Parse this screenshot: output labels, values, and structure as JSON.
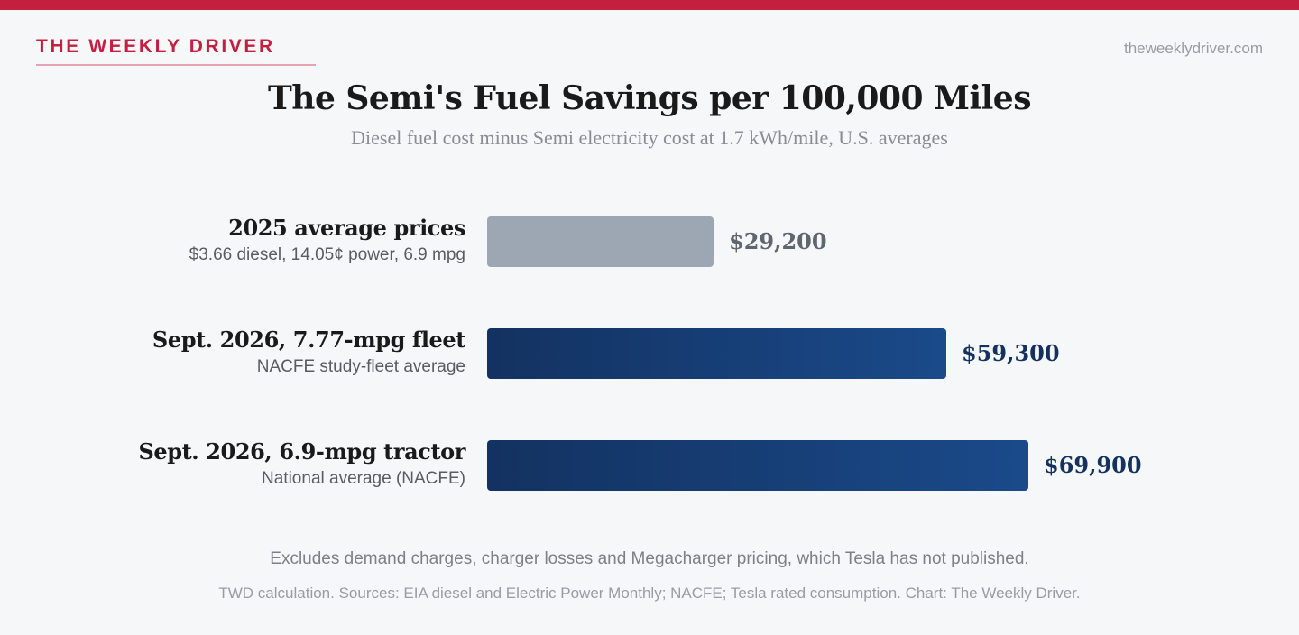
{
  "header": {
    "brand": "THE WEEKLY DRIVER",
    "site": "theweeklydriver.com"
  },
  "chart_data": {
    "type": "bar",
    "orientation": "horizontal",
    "title": "The Semi's Fuel Savings per 100,000 Miles",
    "subtitle": "Diesel fuel cost minus Semi electricity cost at 1.7 kWh/mile, U.S. averages",
    "categories": [
      "2025 average prices",
      "Sept. 2026, 7.77-mpg fleet",
      "Sept. 2026, 6.9-mpg tractor"
    ],
    "sublabels": [
      "$3.66 diesel, 14.05¢ power, 6.9 mpg",
      "NACFE study-fleet average",
      "National average (NACFE)"
    ],
    "values": [
      29200,
      59300,
      69900
    ],
    "value_labels": [
      "$29,200",
      "$59,300",
      "$69,900"
    ],
    "colors": [
      "#9ca7b3",
      "#1a4a8a",
      "#1a4a8a"
    ],
    "value_label_colors": [
      "#5f6670",
      "#15325f",
      "#15325f"
    ],
    "xlim": [
      0,
      72000
    ],
    "grid": false,
    "legend": "none"
  },
  "footer": {
    "note": "Excludes demand charges, charger losses and Megacharger pricing, which Tesla has not published.",
    "sources": "TWD calculation. Sources: EIA diesel and Electric Power Monthly; NACFE; Tesla rated consumption. Chart: The Weekly Driver."
  }
}
